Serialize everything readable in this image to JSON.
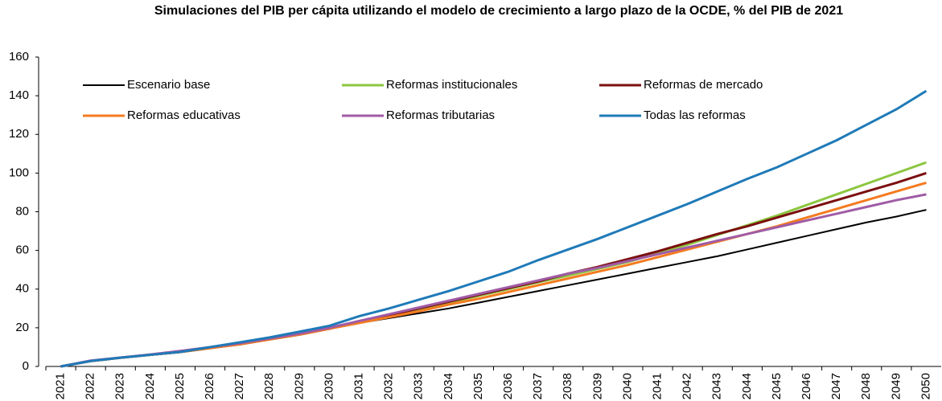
{
  "chart_data": {
    "type": "line",
    "title": "Simulaciones del PIB per cápita utilizando el modelo de crecimiento a largo plazo de la OCDE, % del PIB de 2021",
    "categories": [
      "2021",
      "2022",
      "2023",
      "2024",
      "2025",
      "2026",
      "2027",
      "2028",
      "2029",
      "2030",
      "2031",
      "2032",
      "2033",
      "2034",
      "2035",
      "2036",
      "2037",
      "2038",
      "2039",
      "2040",
      "2041",
      "2042",
      "2043",
      "2044",
      "2045",
      "2046",
      "2047",
      "2048",
      "2049",
      "2050"
    ],
    "series": [
      {
        "name": "Escenario base",
        "color": "#000000",
        "values": [
          0,
          2.8,
          4.5,
          6,
          7.5,
          9.5,
          11.5,
          14,
          16.5,
          19.5,
          22.5,
          25,
          27.5,
          30,
          33,
          36,
          39,
          42,
          45,
          48,
          51,
          54,
          57,
          60.5,
          64,
          67.5,
          71,
          74.5,
          77.5,
          81
        ]
      },
      {
        "name": "Reformas institucionales",
        "color": "#8cc63f",
        "values": [
          0,
          2.8,
          4.5,
          6,
          7.5,
          9.5,
          11.5,
          14,
          16.5,
          19.5,
          23,
          26,
          29.5,
          33,
          36.5,
          40,
          43.5,
          47,
          50.5,
          54,
          58.5,
          63,
          68,
          73,
          78,
          83.5,
          89,
          94.5,
          100,
          105.5
        ]
      },
      {
        "name": "Reformas de mercado",
        "color": "#7b0f0f",
        "values": [
          0,
          2.8,
          4.5,
          6,
          7.5,
          9.5,
          11.5,
          14,
          16.5,
          19.5,
          23.5,
          26.5,
          30,
          33.5,
          37,
          40.5,
          44,
          48,
          51.5,
          55.5,
          59.5,
          64,
          68.5,
          72.5,
          77,
          81.5,
          86,
          90.5,
          95,
          100
        ]
      },
      {
        "name": "Reformas educativas",
        "color": "#f47b20",
        "values": [
          0,
          2.8,
          4.5,
          6,
          7.5,
          9.5,
          11.5,
          14,
          16.5,
          19.5,
          22.5,
          25.5,
          28.5,
          32,
          35,
          38.5,
          42,
          45.5,
          49,
          52.5,
          56.5,
          60.5,
          64.5,
          68.5,
          72.5,
          77,
          81.5,
          86,
          90.5,
          95
        ]
      },
      {
        "name": "Reformas tributarias",
        "color": "#a05ba5",
        "values": [
          0,
          3,
          4.6,
          6.2,
          8,
          10,
          12,
          14.5,
          17,
          20,
          23.5,
          27,
          30.5,
          34,
          37.5,
          41,
          44.5,
          48,
          51,
          54.5,
          58,
          61.5,
          65,
          68.5,
          72,
          75.5,
          79,
          82.5,
          86,
          89
        ]
      },
      {
        "name": "Todas las reformas",
        "color": "#1f7ab8",
        "values": [
          0,
          2.8,
          4.5,
          6,
          7.5,
          10,
          12.5,
          15,
          18,
          21,
          26,
          30,
          34.5,
          39,
          44,
          49,
          55,
          60.5,
          66,
          72,
          78,
          84,
          90.5,
          97,
          103,
          110,
          117,
          125,
          133,
          142.5
        ]
      }
    ],
    "ylim": [
      0,
      160
    ],
    "yticks": [
      0,
      20,
      40,
      60,
      80,
      100,
      120,
      140,
      160
    ]
  }
}
